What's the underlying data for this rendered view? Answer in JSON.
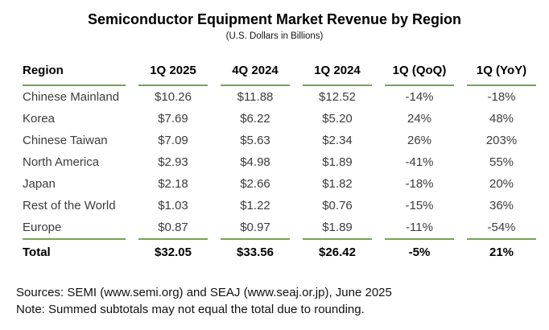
{
  "title": "Semiconductor Equipment Market Revenue by Region",
  "subtitle": "(U.S. Dollars in Billions)",
  "colors": {
    "accent_green": "#74a553",
    "title_text": "#000000",
    "body_text": "#3c3c3c",
    "background": "#ffffff"
  },
  "table": {
    "columns": [
      "Region",
      "1Q 2025",
      "4Q 2024",
      "1Q 2024",
      "1Q (QoQ)",
      "1Q (YoY)"
    ],
    "rows": [
      [
        "Chinese Mainland",
        "$10.26",
        "$11.88",
        "$12.52",
        "-14%",
        "-18%"
      ],
      [
        "Korea",
        "$7.69",
        "$6.22",
        "$5.20",
        "24%",
        "48%"
      ],
      [
        "Chinese Taiwan",
        "$7.09",
        "$5.63",
        "$2.34",
        "26%",
        "203%"
      ],
      [
        "North America",
        "$2.93",
        "$4.98",
        "$1.89",
        "-41%",
        "55%"
      ],
      [
        "Japan",
        "$2.18",
        "$2.66",
        "$1.82",
        "-18%",
        "20%"
      ],
      [
        "Rest of the World",
        "$1.03",
        "$1.22",
        "$0.76",
        "-15%",
        "36%"
      ],
      [
        "Europe",
        "$0.87",
        "$0.97",
        "$1.89",
        "-11%",
        "-54%"
      ]
    ],
    "total": [
      "Total",
      "$32.05",
      "$33.56",
      "$26.42",
      "-5%",
      "21%"
    ]
  },
  "footer": {
    "sources": "Sources: SEMI (www.semi.org) and SEAJ (www.seaj.or.jp), June 2025",
    "note": "Note: Summed subtotals may not equal the total due to rounding."
  },
  "chart_data": {
    "type": "table",
    "title": "Semiconductor Equipment Market Revenue by Region",
    "subtitle": "(U.S. Dollars in Billions)",
    "units": "USD billions",
    "columns": [
      "Region",
      "1Q 2025",
      "4Q 2024",
      "1Q 2024",
      "1Q (QoQ)",
      "1Q (YoY)"
    ],
    "rows": [
      {
        "region": "Chinese Mainland",
        "q1_2025": 10.26,
        "q4_2024": 11.88,
        "q1_2024": 12.52,
        "qoq_pct": -14,
        "yoy_pct": -18
      },
      {
        "region": "Korea",
        "q1_2025": 7.69,
        "q4_2024": 6.22,
        "q1_2024": 5.2,
        "qoq_pct": 24,
        "yoy_pct": 48
      },
      {
        "region": "Chinese Taiwan",
        "q1_2025": 7.09,
        "q4_2024": 5.63,
        "q1_2024": 2.34,
        "qoq_pct": 26,
        "yoy_pct": 203
      },
      {
        "region": "North America",
        "q1_2025": 2.93,
        "q4_2024": 4.98,
        "q1_2024": 1.89,
        "qoq_pct": -41,
        "yoy_pct": 55
      },
      {
        "region": "Japan",
        "q1_2025": 2.18,
        "q4_2024": 2.66,
        "q1_2024": 1.82,
        "qoq_pct": -18,
        "yoy_pct": 20
      },
      {
        "region": "Rest of the World",
        "q1_2025": 1.03,
        "q4_2024": 1.22,
        "q1_2024": 0.76,
        "qoq_pct": -15,
        "yoy_pct": 36
      },
      {
        "region": "Europe",
        "q1_2025": 0.87,
        "q4_2024": 0.97,
        "q1_2024": 1.89,
        "qoq_pct": -11,
        "yoy_pct": -54
      }
    ],
    "total": {
      "region": "Total",
      "q1_2025": 32.05,
      "q4_2024": 33.56,
      "q1_2024": 26.42,
      "qoq_pct": -5,
      "yoy_pct": 21
    }
  }
}
